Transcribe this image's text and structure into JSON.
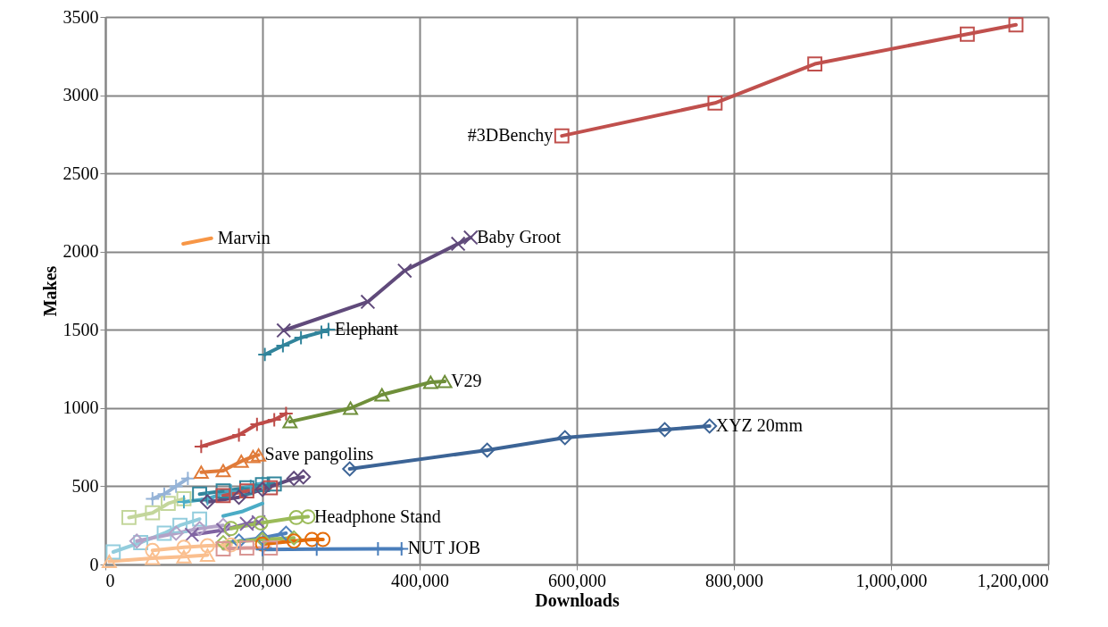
{
  "chart_data": {
    "type": "line",
    "xlabel": "Downloads",
    "ylabel": "Makes",
    "xlim": [
      0,
      1200000
    ],
    "ylim": [
      0,
      3500
    ],
    "xticks": [
      {
        "value": 0,
        "label": "0"
      },
      {
        "value": 200000,
        "label": "200,000"
      },
      {
        "value": 400000,
        "label": "400,000"
      },
      {
        "value": 600000,
        "label": "600,000"
      },
      {
        "value": 800000,
        "label": "800,000"
      },
      {
        "value": 1000000,
        "label": "1,000,000"
      },
      {
        "value": 1200000,
        "label": "1,200,000"
      }
    ],
    "yticks": [
      0,
      500,
      1000,
      1500,
      2000,
      2500,
      3000,
      3500
    ],
    "grid": true,
    "legend": false,
    "series": [
      {
        "color": "#c3d69b",
        "marker": "square",
        "x": [
          30000,
          60000,
          80000,
          100000
        ],
        "values": [
          300,
          330,
          390,
          420
        ]
      },
      {
        "color": "#95b3d7",
        "marker": "cross",
        "x": [
          60000,
          75000,
          90000,
          105000
        ],
        "values": [
          420,
          450,
          500,
          550
        ]
      },
      {
        "color": "#93cddd",
        "marker": "square",
        "x": [
          10000,
          45000,
          75000,
          95000,
          120000
        ],
        "values": [
          80,
          140,
          200,
          250,
          290
        ]
      },
      {
        "color": "#b3a2c7",
        "marker": "diamond",
        "x": [
          40000,
          90000,
          120000,
          150000
        ],
        "values": [
          150,
          200,
          230,
          250
        ]
      },
      {
        "color": "#4bacc6",
        "marker": "cross",
        "x": [
          100000,
          130000,
          160000,
          185000,
          200000
        ],
        "values": [
          400,
          420,
          470,
          500,
          520
        ]
      },
      {
        "color": "#31859c",
        "marker": "square",
        "x": [
          120000,
          150000,
          180000,
          200000,
          215000
        ],
        "values": [
          450,
          470,
          490,
          510,
          515
        ]
      },
      {
        "color": "#c0504d",
        "marker": "square",
        "x": [
          150000,
          180000,
          210000
        ],
        "values": [
          440,
          470,
          490
        ]
      },
      {
        "color": "#604a7b",
        "marker": "diamond",
        "x": [
          130000,
          170000,
          200000,
          240000,
          252000
        ],
        "values": [
          400,
          430,
          480,
          550,
          560
        ]
      },
      {
        "color": "#4bacc6",
        "marker": "none",
        "x": [
          150000,
          175000,
          200000
        ],
        "values": [
          310,
          340,
          390
        ]
      },
      {
        "color": "#8064a2",
        "marker": "x",
        "x": [
          110000,
          150000,
          180000,
          195000
        ],
        "values": [
          190,
          220,
          260,
          270
        ]
      },
      {
        "color": "#4f81bd",
        "marker": "diamond",
        "x": [
          170000,
          200000,
          230000
        ],
        "values": [
          150,
          170,
          200
        ]
      },
      {
        "color": "#9bbb59",
        "marker": "diamond",
        "x": [
          150000,
          200000,
          240000
        ],
        "values": [
          140,
          160,
          170
        ]
      },
      {
        "color": "#e46c0a",
        "marker": "circle",
        "x": [
          200000,
          240000,
          263000,
          277000
        ],
        "values": [
          130,
          150,
          160,
          160
        ]
      },
      {
        "color": "#fac090",
        "marker": "circle",
        "x": [
          60000,
          100000,
          130000,
          160000
        ],
        "values": [
          90,
          110,
          120,
          125
        ]
      },
      {
        "color": "#d99694",
        "marker": "square",
        "x": [
          150000,
          180000,
          210000
        ],
        "values": [
          100,
          105,
          105
        ]
      },
      {
        "color": "#fabf8f",
        "marker": "triangle",
        "x": [
          5000,
          60000,
          100000,
          130000
        ],
        "values": [
          20,
          40,
          50,
          60
        ]
      },
      {
        "name": "NUT JOB",
        "color": "#4a7ebb",
        "marker": "cross",
        "x": [
          200000,
          269000,
          347000,
          377000
        ],
        "values": [
          95,
          98,
          100,
          100
        ]
      },
      {
        "name": "Headphone Stand",
        "color": "#9bbb59",
        "marker": "circle",
        "x": [
          160000,
          198000,
          243000,
          258000
        ],
        "values": [
          230,
          265,
          300,
          305
        ]
      },
      {
        "name": "Save pangolins",
        "color": "#e07b39",
        "marker": "triangle",
        "x": [
          122000,
          150000,
          173000,
          188000,
          195000
        ],
        "values": [
          590,
          600,
          660,
          690,
          700
        ]
      },
      {
        "name": "XYZ 20mm",
        "color": "#3c6496",
        "marker": "diamond",
        "x": [
          311000,
          486000,
          585000,
          712000,
          769000
        ],
        "values": [
          611,
          731,
          811,
          862,
          885
        ]
      },
      {
        "color": "#be4b48",
        "marker": "cross",
        "x": [
          122000,
          170000,
          193000,
          215000,
          230000
        ],
        "values": [
          754,
          828,
          896,
          925,
          965
        ]
      },
      {
        "name": "V29",
        "color": "#6f8f3a",
        "marker": "triangle",
        "x": [
          235000,
          312000,
          352000,
          414000,
          432000
        ],
        "values": [
          913,
          999,
          1085,
          1165,
          1170
        ]
      },
      {
        "name": "Elephant",
        "color": "#31849b",
        "marker": "cross",
        "x": [
          203000,
          226000,
          249000,
          275000,
          284000
        ],
        "values": [
          1342,
          1399,
          1450,
          1485,
          1502
        ]
      },
      {
        "name": "Baby Groot",
        "color": "#604a7b",
        "marker": "x",
        "x": [
          227000,
          334000,
          381000,
          449000,
          465000
        ],
        "values": [
          1496,
          1679,
          1878,
          2050,
          2090
        ]
      },
      {
        "name": "Marvin",
        "color": "#f79646",
        "marker": "none",
        "x": [
          99000,
          135000
        ],
        "values": [
          2050,
          2085
        ]
      },
      {
        "name": "#3DBenchy",
        "color": "#c0504d",
        "marker": "square",
        "x": [
          581000,
          776000,
          903000,
          1097000,
          1159000
        ],
        "values": [
          2740,
          2950,
          3200,
          3390,
          3450
        ]
      }
    ]
  }
}
